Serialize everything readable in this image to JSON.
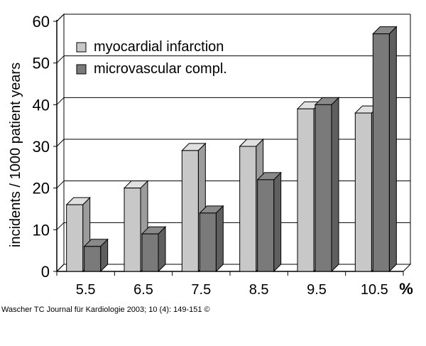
{
  "chart_data": {
    "type": "bar",
    "title": "",
    "xlabel": "",
    "ylabel": "incidents / 1000 patient years",
    "x_unit": "%",
    "categories": [
      "5.5",
      "6.5",
      "7.5",
      "8.5",
      "9.5",
      "10.5"
    ],
    "series": [
      {
        "name": "myocardial infarction",
        "values": [
          16,
          20,
          29,
          30,
          39,
          38
        ]
      },
      {
        "name": "microvascular compl.",
        "values": [
          6,
          9,
          14,
          22,
          40,
          57
        ]
      }
    ],
    "ylim": [
      0,
      60
    ],
    "yticks": [
      "0",
      "10",
      "20",
      "30",
      "40",
      "50",
      "60"
    ],
    "grid": true,
    "legend_position": "top-left",
    "colors": {
      "series1": "#c8c8c8",
      "series2": "#7a7a7a",
      "grid": "#000000"
    },
    "style": "3d"
  },
  "credit": "Wascher TC Journal für Kardiologie 2003; 10 (4): 149-151 ©"
}
